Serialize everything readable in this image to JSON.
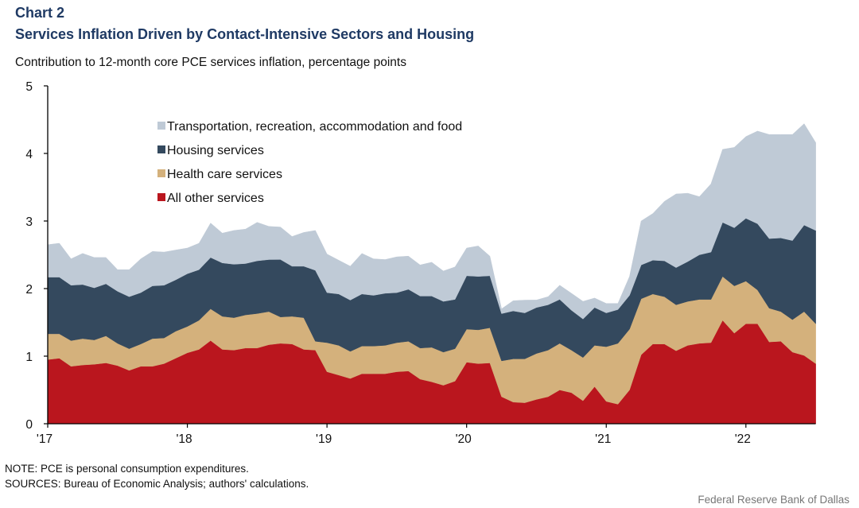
{
  "header": {
    "chart_label": "Chart 2",
    "title": "Services Inflation Driven by Contact-Intensive Sectors and Housing",
    "subtitle": "Contribution to 12-month core PCE services inflation, percentage points"
  },
  "footer": {
    "note": "NOTE: PCE is personal consumption expenditures.",
    "sources": "SOURCES: Bureau of Economic Analysis; authors' calculations.",
    "credit": "Federal Reserve  Bank of Dallas"
  },
  "chart_data": {
    "type": "area",
    "stacked": true,
    "title": "Services Inflation Driven by Contact-Intensive Sectors and Housing",
    "ylabel": "Contribution to 12-month core PCE services inflation, percentage points",
    "xlabel": "",
    "ylim": [
      0,
      5
    ],
    "yticks": [
      0,
      1,
      2,
      3,
      4,
      5
    ],
    "x_start": "2017-01",
    "x_end": "2022-07",
    "frequency": "monthly",
    "xtick_labels": [
      "'17",
      "'18",
      "'19",
      "'20",
      "'21",
      "'22"
    ],
    "xtick_month_index": [
      0,
      12,
      24,
      36,
      48,
      60
    ],
    "grid": false,
    "legend_position": "top-left",
    "series": [
      {
        "name": "All other services",
        "color": "#BA161E",
        "values": [
          0.95,
          0.97,
          0.85,
          0.87,
          0.88,
          0.9,
          0.86,
          0.79,
          0.85,
          0.85,
          0.89,
          0.97,
          1.05,
          1.1,
          1.23,
          1.1,
          1.09,
          1.12,
          1.12,
          1.17,
          1.19,
          1.18,
          1.1,
          1.09,
          0.77,
          0.72,
          0.67,
          0.74,
          0.74,
          0.74,
          0.77,
          0.78,
          0.66,
          0.62,
          0.57,
          0.63,
          0.91,
          0.89,
          0.9,
          0.4,
          0.32,
          0.31,
          0.36,
          0.4,
          0.5,
          0.46,
          0.34,
          0.55,
          0.33,
          0.29,
          0.5,
          1.02,
          1.18,
          1.18,
          1.08,
          1.16,
          1.19,
          1.2,
          1.53,
          1.34,
          1.48,
          1.48,
          1.21,
          1.22,
          1.06,
          1.01,
          0.89
        ]
      },
      {
        "name": "Health care services",
        "color": "#D4B17C",
        "values": [
          0.38,
          0.36,
          0.38,
          0.39,
          0.36,
          0.4,
          0.33,
          0.32,
          0.33,
          0.41,
          0.38,
          0.4,
          0.39,
          0.43,
          0.47,
          0.49,
          0.48,
          0.49,
          0.51,
          0.49,
          0.39,
          0.41,
          0.47,
          0.13,
          0.43,
          0.44,
          0.4,
          0.41,
          0.41,
          0.42,
          0.43,
          0.44,
          0.46,
          0.51,
          0.49,
          0.48,
          0.49,
          0.5,
          0.52,
          0.53,
          0.64,
          0.65,
          0.68,
          0.69,
          0.69,
          0.63,
          0.64,
          0.61,
          0.81,
          0.9,
          0.9,
          0.83,
          0.74,
          0.7,
          0.68,
          0.65,
          0.65,
          0.64,
          0.65,
          0.7,
          0.63,
          0.5,
          0.5,
          0.44,
          0.48,
          0.65,
          0.59
        ]
      },
      {
        "name": "Housing services",
        "color": "#34495E",
        "values": [
          0.84,
          0.84,
          0.82,
          0.8,
          0.77,
          0.77,
          0.77,
          0.77,
          0.76,
          0.78,
          0.78,
          0.76,
          0.78,
          0.75,
          0.76,
          0.79,
          0.79,
          0.76,
          0.78,
          0.77,
          0.85,
          0.74,
          0.76,
          1.05,
          0.74,
          0.76,
          0.76,
          0.77,
          0.75,
          0.77,
          0.74,
          0.77,
          0.77,
          0.76,
          0.75,
          0.73,
          0.79,
          0.79,
          0.77,
          0.7,
          0.71,
          0.68,
          0.68,
          0.67,
          0.65,
          0.59,
          0.57,
          0.56,
          0.5,
          0.5,
          0.5,
          0.5,
          0.5,
          0.53,
          0.55,
          0.59,
          0.66,
          0.7,
          0.8,
          0.86,
          0.93,
          0.98,
          1.03,
          1.09,
          1.17,
          1.28,
          1.38
        ]
      },
      {
        "name": "Transportation, recreation, accommodation and food",
        "color": "#BFCAD6",
        "values": [
          0.48,
          0.5,
          0.39,
          0.46,
          0.45,
          0.39,
          0.32,
          0.4,
          0.5,
          0.51,
          0.49,
          0.44,
          0.38,
          0.39,
          0.51,
          0.44,
          0.5,
          0.51,
          0.57,
          0.49,
          0.48,
          0.44,
          0.5,
          0.59,
          0.57,
          0.5,
          0.5,
          0.6,
          0.54,
          0.5,
          0.53,
          0.49,
          0.46,
          0.5,
          0.45,
          0.48,
          0.41,
          0.45,
          0.29,
          0.07,
          0.15,
          0.19,
          0.11,
          0.12,
          0.21,
          0.25,
          0.26,
          0.14,
          0.14,
          0.09,
          0.28,
          0.65,
          0.69,
          0.88,
          1.09,
          1.01,
          0.86,
          1.01,
          1.08,
          1.19,
          1.21,
          1.37,
          1.54,
          1.53,
          1.57,
          1.5,
          1.3
        ]
      }
    ],
    "legend_order": [
      "Transportation, recreation, accommodation and food",
      "Housing services",
      "Health care services",
      "All other services"
    ]
  }
}
